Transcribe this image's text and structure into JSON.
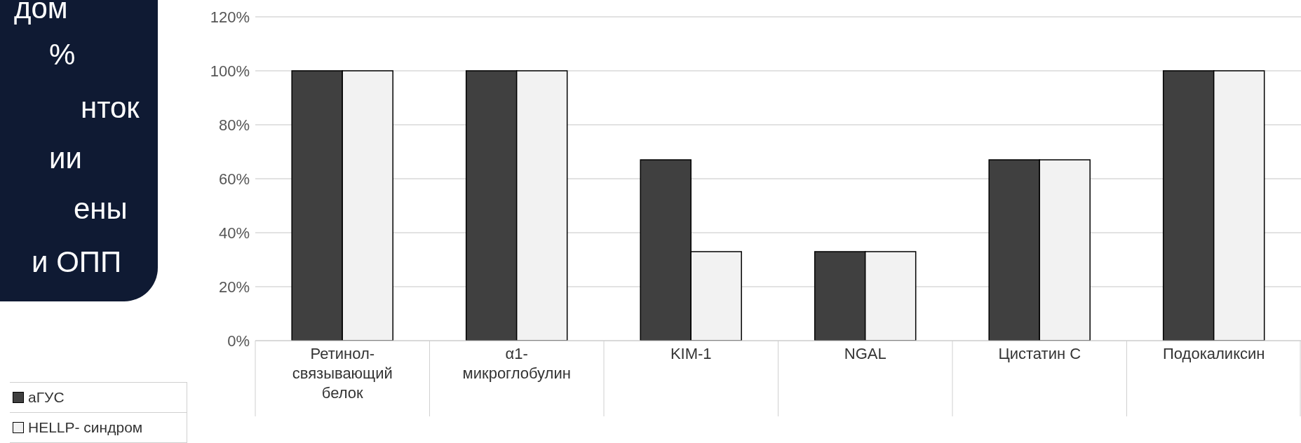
{
  "chart_data": {
    "type": "bar",
    "categories": [
      "Ретинол-связывающий белок",
      "α1-микроглобулин",
      "KIM-1",
      "NGAL",
      "Цистатин С",
      "Подокаликсин"
    ],
    "series": [
      {
        "name": "аГУС",
        "color": "#404040",
        "values": [
          100,
          100,
          67,
          33,
          67,
          100
        ]
      },
      {
        "name": "HELLP- синдром",
        "color": "#f2f2f2",
        "values": [
          100,
          100,
          33,
          33,
          67,
          100
        ]
      }
    ],
    "ylim": [
      0,
      120
    ],
    "yticks": [
      {
        "value": 0,
        "label": "0%"
      },
      {
        "value": 20,
        "label": "20%"
      },
      {
        "value": 40,
        "label": "40%"
      },
      {
        "value": 60,
        "label": "60%"
      },
      {
        "value": 80,
        "label": "80%"
      },
      {
        "value": 100,
        "label": "100%"
      },
      {
        "value": 120,
        "label": "120%"
      }
    ],
    "grid": "y",
    "legend": "bottom left",
    "annotations": [
      "дом",
      "%",
      "нток",
      "ии",
      "ены",
      "и ОПП"
    ]
  }
}
